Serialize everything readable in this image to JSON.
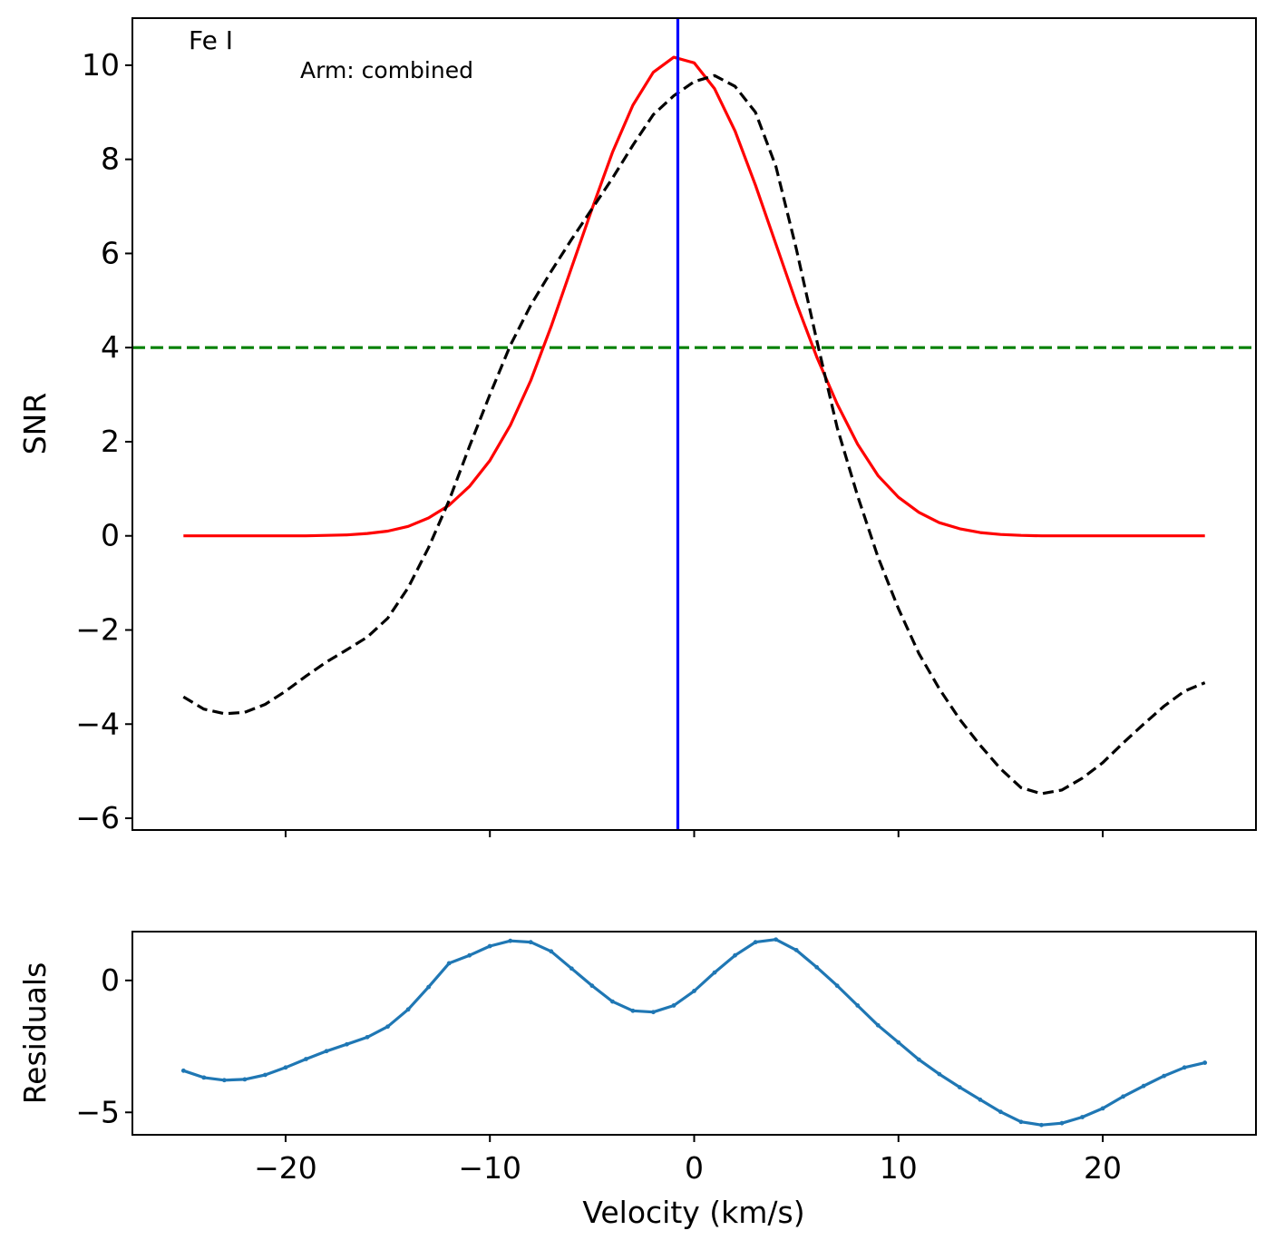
{
  "chart_data": [
    {
      "type": "line",
      "ylabel": "SNR",
      "xlim": [
        -27.5,
        27.5
      ],
      "ylim": [
        -6.25,
        11.0
      ],
      "yticks": [
        -6,
        -4,
        -2,
        0,
        2,
        4,
        6,
        8,
        10
      ],
      "ytick_labels": [
        "−6",
        "−4",
        "−2",
        "0",
        "2",
        "4",
        "6",
        "8",
        "10"
      ],
      "xticks": [
        -20,
        -10,
        0,
        10,
        20
      ],
      "annotations": {
        "species": "Fe I",
        "arm": "Arm: combined"
      },
      "threshold": {
        "y": 4,
        "color": "#008000",
        "style": "dashed"
      },
      "vline": {
        "x": -0.8,
        "color": "#0000ff"
      },
      "series": [
        {
          "style": "solid",
          "color": "#ff0000",
          "x": [
            -25,
            -24,
            -23,
            -22,
            -21,
            -20,
            -19,
            -18,
            -17,
            -16,
            -15,
            -14,
            -13,
            -12,
            -11,
            -10,
            -9,
            -8,
            -7,
            -6,
            -5,
            -4,
            -3,
            -2,
            -1,
            0,
            1,
            2,
            3,
            4,
            5,
            6,
            7,
            8,
            9,
            10,
            11,
            12,
            13,
            14,
            15,
            16,
            17,
            18,
            19,
            20,
            21,
            22,
            23,
            24,
            25
          ],
          "y": [
            0,
            0,
            0,
            0,
            0,
            0,
            0,
            0.01,
            0.02,
            0.05,
            0.1,
            0.2,
            0.38,
            0.65,
            1.05,
            1.6,
            2.35,
            3.3,
            4.45,
            5.7,
            6.95,
            8.15,
            9.15,
            9.85,
            10.17,
            10.05,
            9.5,
            8.6,
            7.45,
            6.2,
            4.95,
            3.8,
            2.8,
            1.95,
            1.28,
            0.82,
            0.5,
            0.28,
            0.15,
            0.07,
            0.03,
            0.01,
            0,
            0,
            0,
            0,
            0,
            0,
            0,
            0,
            0
          ]
        },
        {
          "style": "dashed",
          "color": "#000000",
          "x": [
            -25,
            -24,
            -23,
            -22,
            -21,
            -20,
            -19,
            -18,
            -17,
            -16,
            -15,
            -14,
            -13,
            -12,
            -11,
            -10,
            -9,
            -8,
            -7,
            -6,
            -5,
            -4,
            -3,
            -2,
            -1,
            0,
            1,
            2,
            3,
            4,
            5,
            6,
            7,
            8,
            9,
            10,
            11,
            12,
            13,
            14,
            15,
            16,
            17,
            18,
            19,
            20,
            21,
            22,
            23,
            24,
            25
          ],
          "y": [
            -3.42,
            -3.68,
            -3.78,
            -3.75,
            -3.58,
            -3.3,
            -2.98,
            -2.68,
            -2.42,
            -2.15,
            -1.75,
            -1.1,
            -0.25,
            0.75,
            1.9,
            3.0,
            4.05,
            4.9,
            5.62,
            6.3,
            6.95,
            7.6,
            8.3,
            8.95,
            9.35,
            9.65,
            9.78,
            9.55,
            9.0,
            7.85,
            6.1,
            4.15,
            2.3,
            0.85,
            -0.45,
            -1.55,
            -2.5,
            -3.25,
            -3.9,
            -4.45,
            -4.95,
            -5.35,
            -5.48,
            -5.4,
            -5.15,
            -4.82,
            -4.4,
            -4.0,
            -3.62,
            -3.3,
            -3.12
          ]
        }
      ]
    },
    {
      "type": "line",
      "xlabel": "Velocity (km/s)",
      "ylabel": "Residuals",
      "xlim": [
        -27.5,
        27.5
      ],
      "ylim": [
        -5.85,
        1.85
      ],
      "yticks": [
        -5,
        0
      ],
      "ytick_labels": [
        "−5",
        "0"
      ],
      "xticks": [
        -20,
        -10,
        0,
        10,
        20
      ],
      "xtick_labels": [
        "−20",
        "−10",
        "0",
        "10",
        "20"
      ],
      "series": [
        {
          "style": "solid-markers",
          "color": "#1f77b4",
          "x": [
            -25,
            -24,
            -23,
            -22,
            -21,
            -20,
            -19,
            -18,
            -17,
            -16,
            -15,
            -14,
            -13,
            -12,
            -11,
            -10,
            -9,
            -8,
            -7,
            -6,
            -5,
            -4,
            -3,
            -2,
            -1,
            0,
            1,
            2,
            3,
            4,
            5,
            6,
            7,
            8,
            9,
            10,
            11,
            12,
            13,
            14,
            15,
            16,
            17,
            18,
            19,
            20,
            21,
            22,
            23,
            24,
            25
          ],
          "y": [
            -3.42,
            -3.68,
            -3.78,
            -3.75,
            -3.58,
            -3.3,
            -2.98,
            -2.68,
            -2.42,
            -2.15,
            -1.75,
            -1.1,
            -0.25,
            0.65,
            0.95,
            1.3,
            1.5,
            1.45,
            1.1,
            0.45,
            -0.2,
            -0.8,
            -1.15,
            -1.2,
            -0.95,
            -0.4,
            0.3,
            0.95,
            1.45,
            1.55,
            1.15,
            0.5,
            -0.2,
            -0.95,
            -1.7,
            -2.35,
            -3.0,
            -3.55,
            -4.05,
            -4.52,
            -4.98,
            -5.36,
            -5.48,
            -5.41,
            -5.18,
            -4.85,
            -4.4,
            -4.0,
            -3.62,
            -3.3,
            -3.12
          ]
        }
      ]
    }
  ]
}
